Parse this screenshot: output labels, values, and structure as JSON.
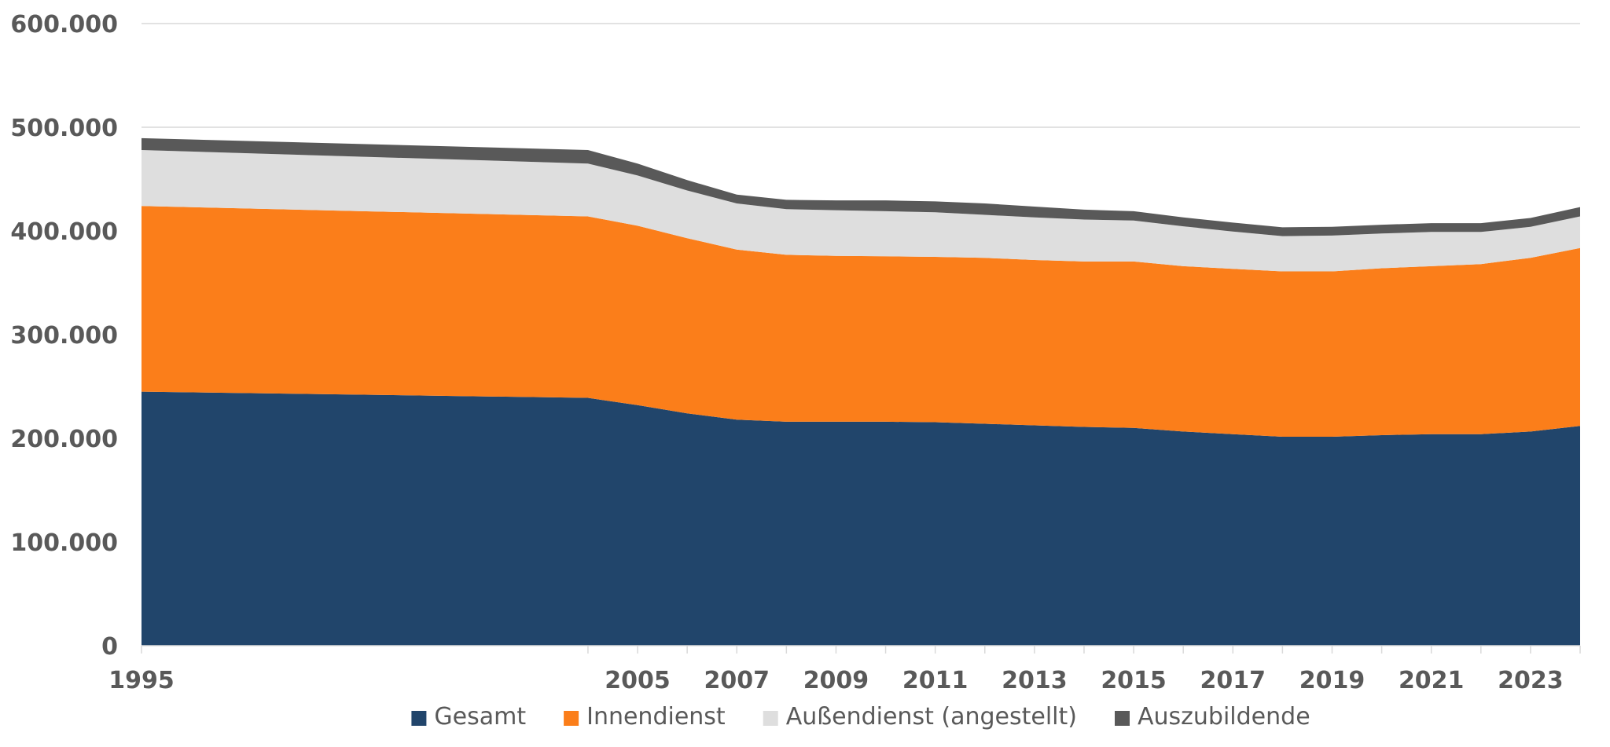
{
  "chart_data": {
    "type": "area",
    "stacked": true,
    "x": [
      1995,
      2004,
      2005,
      2006,
      2007,
      2008,
      2009,
      2010,
      2011,
      2012,
      2013,
      2014,
      2015,
      2016,
      2017,
      2018,
      2019,
      2020,
      2021,
      2022,
      2023,
      2024
    ],
    "x_tick_labels": [
      "1995",
      "2005",
      "2007",
      "2009",
      "2011",
      "2013",
      "2015",
      "2017",
      "2019",
      "2021",
      "2023"
    ],
    "y_tick_labels": [
      "0",
      "100.000",
      "200.000",
      "300.000",
      "400.000",
      "500.000",
      "600.000"
    ],
    "ylim": [
      0,
      600000
    ],
    "y_tick_step": 100000,
    "grid": "horizontal",
    "legend_position": "bottom",
    "series": [
      {
        "name": "Gesamt",
        "color": "#21456B",
        "values": [
          245000,
          239000,
          232000,
          224000,
          218000,
          216000,
          216000,
          216000,
          215500,
          214000,
          212500,
          211000,
          210000,
          206500,
          204000,
          201500,
          201500,
          203000,
          204000,
          204000,
          206500,
          212000
        ]
      },
      {
        "name": "Innendienst",
        "color": "#FB7E1A",
        "values": [
          179000,
          175000,
          173000,
          169000,
          164000,
          161000,
          160000,
          159500,
          159500,
          160000,
          159500,
          159500,
          160500,
          159500,
          159500,
          159500,
          159500,
          161000,
          162000,
          164000,
          167500,
          171500
        ]
      },
      {
        "name": "Außendienst (angestellt)",
        "color": "#DEDEDE",
        "values": [
          54000,
          51000,
          48500,
          46000,
          44500,
          44000,
          44000,
          43500,
          43000,
          41500,
          41000,
          40500,
          39500,
          38500,
          36000,
          34000,
          34500,
          33500,
          33000,
          31000,
          30000,
          30500
        ]
      },
      {
        "name": "Auszubildende",
        "color": "#595959",
        "values": [
          11500,
          13000,
          11500,
          10000,
          8500,
          9000,
          9500,
          10500,
          10500,
          11000,
          10500,
          9500,
          9000,
          8500,
          8500,
          8500,
          8500,
          8500,
          8500,
          8500,
          8500,
          9000
        ]
      }
    ]
  }
}
